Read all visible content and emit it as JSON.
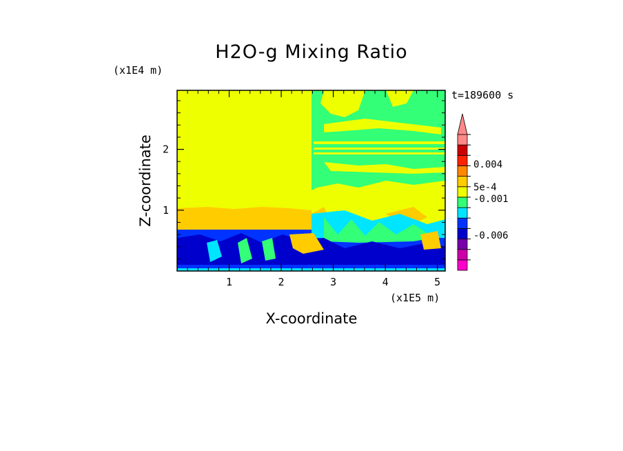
{
  "chart_data": {
    "type": "heatmap",
    "title": "H2O-g Mixing Ratio",
    "xlabel": "X-coordinate",
    "ylabel": "Z-coordinate",
    "x_scale_label": "(x1E5 m)",
    "y_scale_label": "(x1E4 m)",
    "time_label": "t=189600 s",
    "xlim": [
      0,
      5.15
    ],
    "ylim": [
      0,
      2.97
    ],
    "x_ticks": [
      "1",
      "2",
      "3",
      "4",
      "5"
    ],
    "x_tick_values": [
      1,
      2,
      3,
      4,
      5
    ],
    "y_ticks": [
      "1",
      "2"
    ],
    "y_tick_values": [
      1,
      2
    ],
    "colorbar": {
      "colors": [
        "#ff00cc",
        "#cc00aa",
        "#7700aa",
        "#0000cc",
        "#0033ff",
        "#00e5ff",
        "#33ff77",
        "#eeff00",
        "#ffcc00",
        "#ff8800",
        "#ff2200",
        "#cc0000",
        "#ff8888"
      ],
      "extend": "max",
      "labels": [
        {
          "text": "0.004",
          "value": 0.004
        },
        {
          "text": "5e-4",
          "value": 0.0005
        },
        {
          "text": "-0.001",
          "value": -0.001
        },
        {
          "text": "-0.006",
          "value": -0.006
        }
      ]
    },
    "regions": [
      {
        "name": "upper-left-background",
        "level": "0",
        "color": "#eeff00"
      },
      {
        "name": "upper-right-moist-band",
        "level": "-5e-4",
        "color": "#33ff77"
      },
      {
        "name": "mid-layer-orange",
        "level": "5e-4",
        "color": "#ffcc00"
      },
      {
        "name": "boundary-layer-dry",
        "level": "-0.004",
        "color": "#0000cc"
      }
    ]
  }
}
